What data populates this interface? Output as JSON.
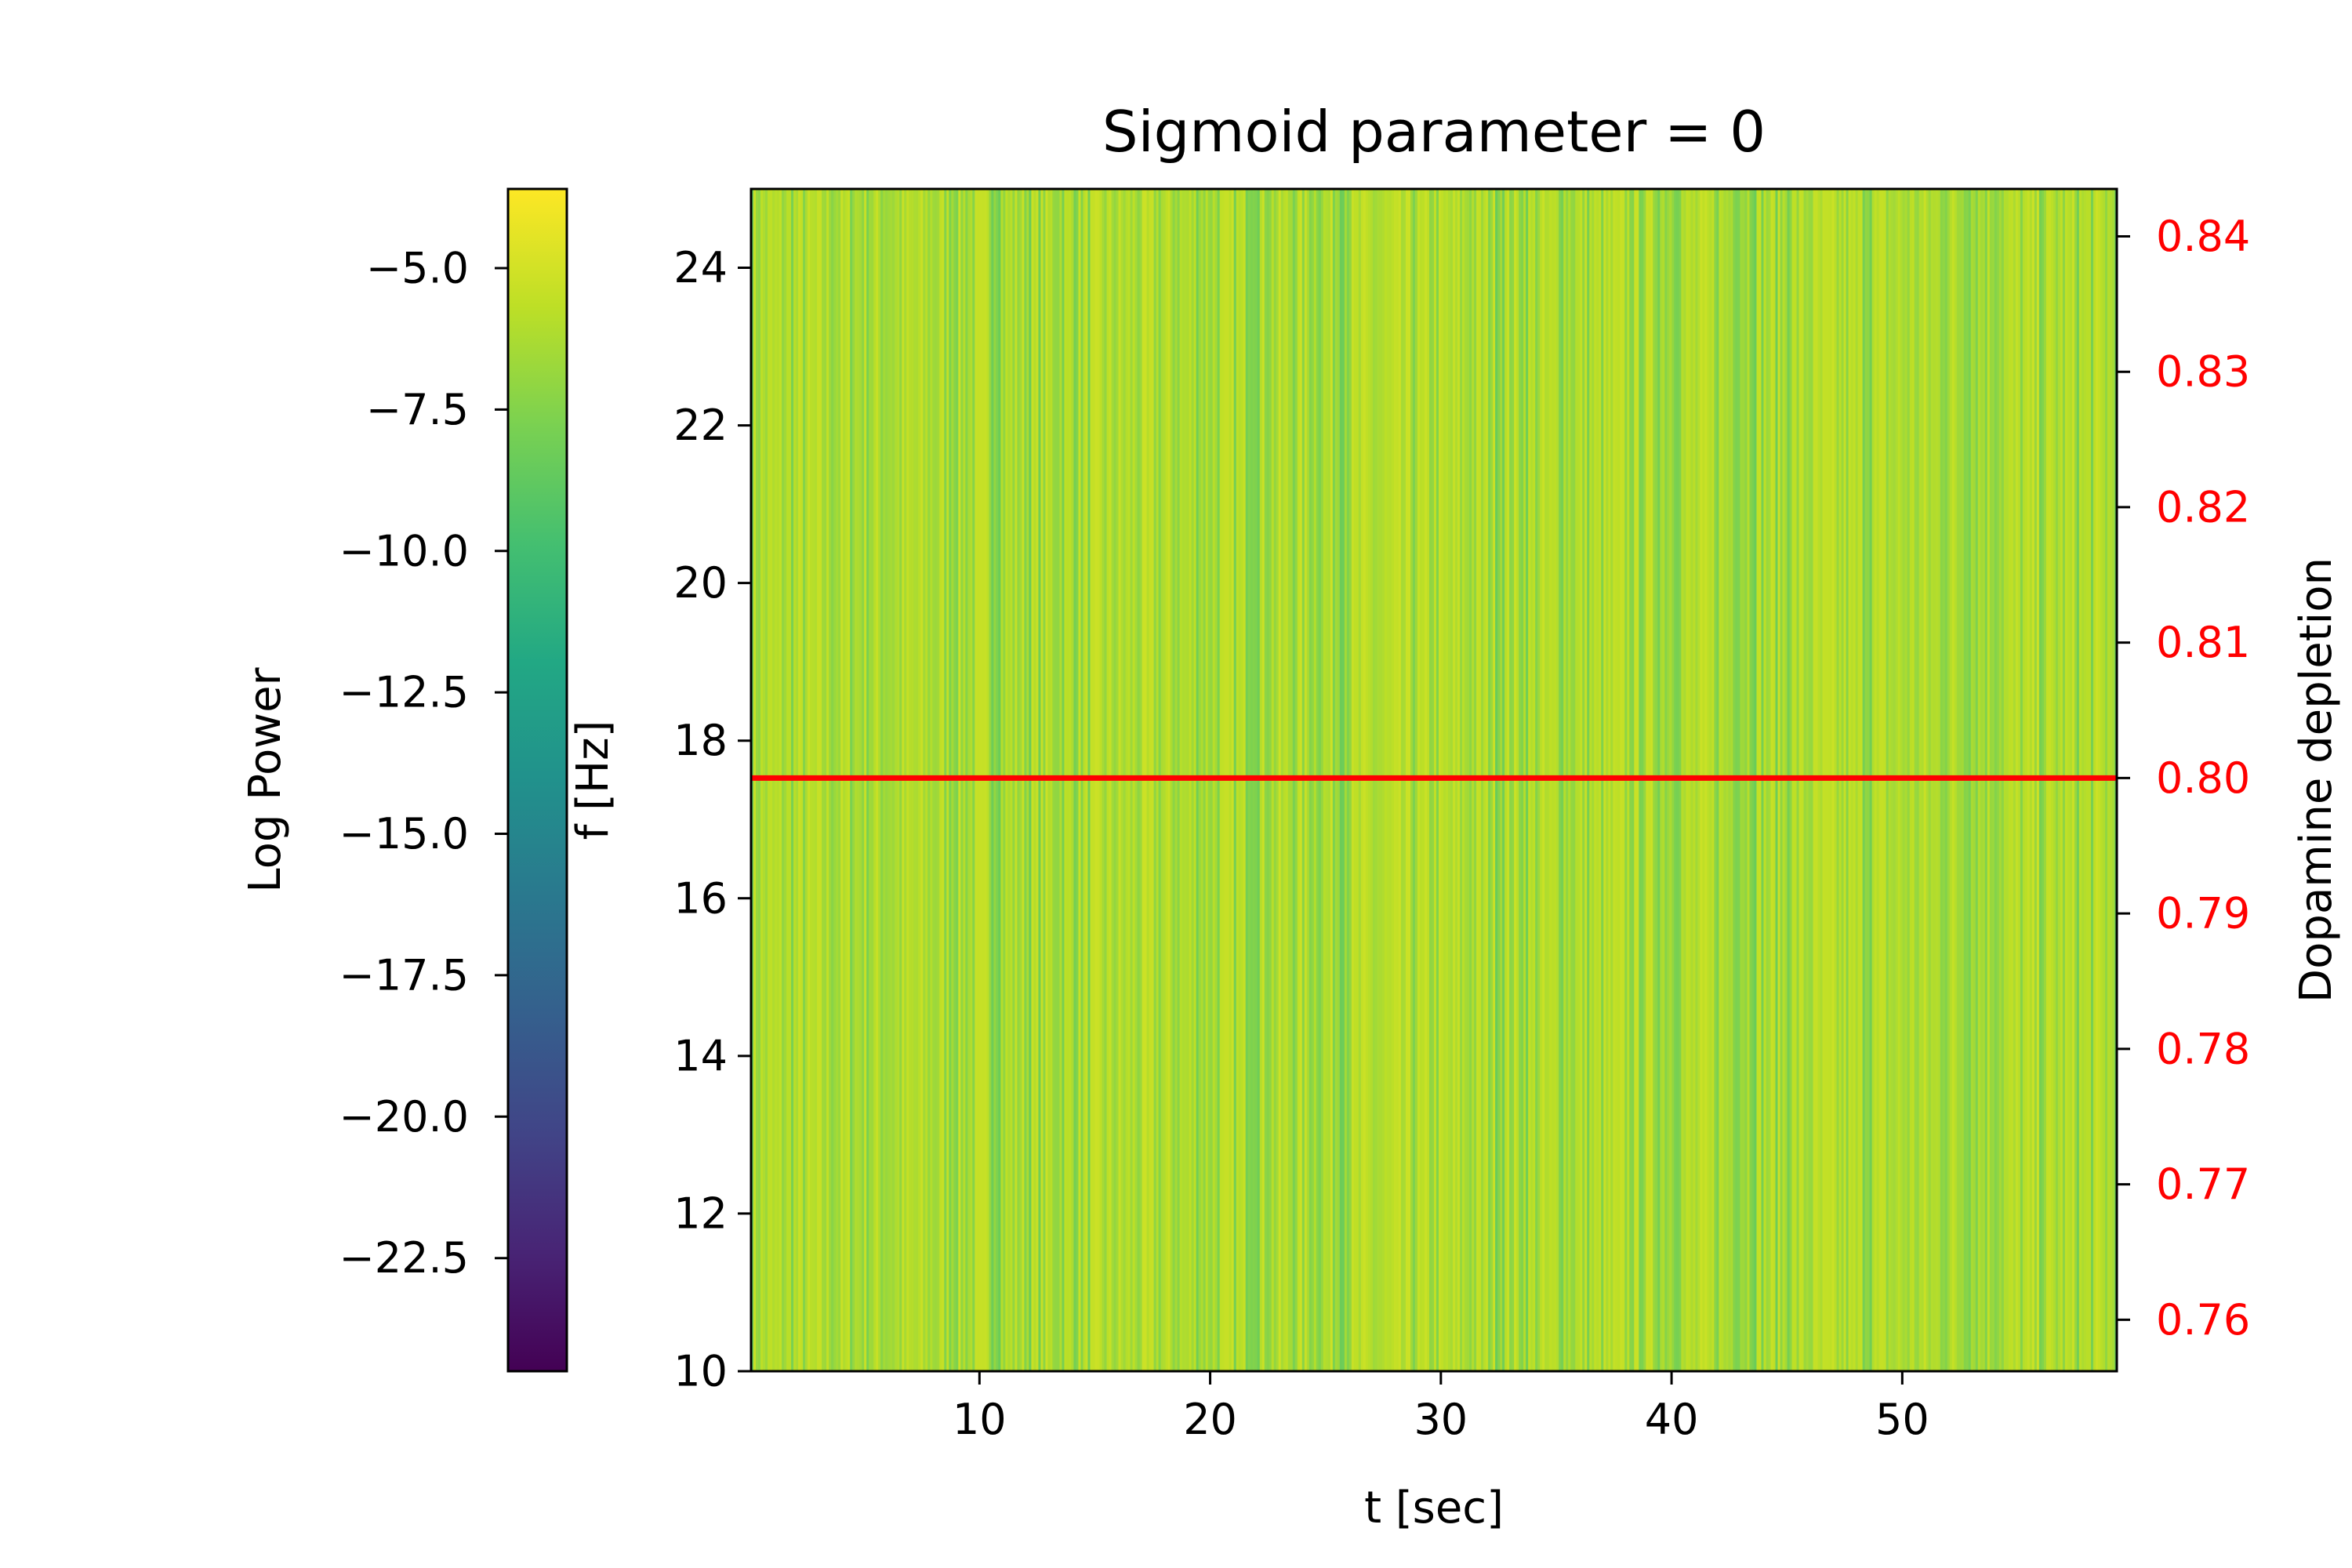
{
  "chart_data": {
    "type": "heatmap",
    "title": "Sigmoid parameter = 0",
    "xlabel": "t [sec]",
    "ylabel": "f [Hz]",
    "y2label": "Dopamine depletion",
    "colorbar_label": "Log Power",
    "colormap": "viridis",
    "xlim": [
      0.1,
      59.3
    ],
    "ylim": [
      10,
      25
    ],
    "y2lim": [
      0.7562,
      0.8435
    ],
    "clim": [
      -24.5,
      -3.6
    ],
    "xticks": [
      10,
      20,
      30,
      40,
      50
    ],
    "xtick_labels": [
      "10",
      "20",
      "30",
      "40",
      "50"
    ],
    "yticks": [
      10,
      12,
      14,
      16,
      18,
      20,
      22,
      24
    ],
    "ytick_labels": [
      "10",
      "12",
      "14",
      "16",
      "18",
      "20",
      "22",
      "24"
    ],
    "y2ticks": [
      0.76,
      0.77,
      0.78,
      0.79,
      0.8,
      0.81,
      0.82,
      0.83,
      0.84
    ],
    "y2tick_labels": [
      "0.76",
      "0.77",
      "0.78",
      "0.79",
      "0.80",
      "0.81",
      "0.82",
      "0.83",
      "0.84"
    ],
    "colorbar_ticks": [
      -5.0,
      -7.5,
      -10.0,
      -12.5,
      -15.0,
      -17.5,
      -20.0,
      -22.5
    ],
    "colorbar_tick_labels": [
      "−5.0",
      "−7.5",
      "−10.0",
      "−12.5",
      "−15.0",
      "−17.5",
      "−20.0",
      "−22.5"
    ],
    "heatmap_value_range": [
      -8.5,
      -5.2
    ],
    "heatmap_typical_value": -6.8,
    "series": [
      {
        "type": "line",
        "axis": "right",
        "color": "#ff0000",
        "x": [
          0.1,
          59.3
        ],
        "y": [
          0.8,
          0.8
        ]
      }
    ],
    "grid": false,
    "legend": "none",
    "colors": {
      "line": "#ff0000",
      "right_axis": "#ff0000",
      "axes": "#000000"
    }
  }
}
